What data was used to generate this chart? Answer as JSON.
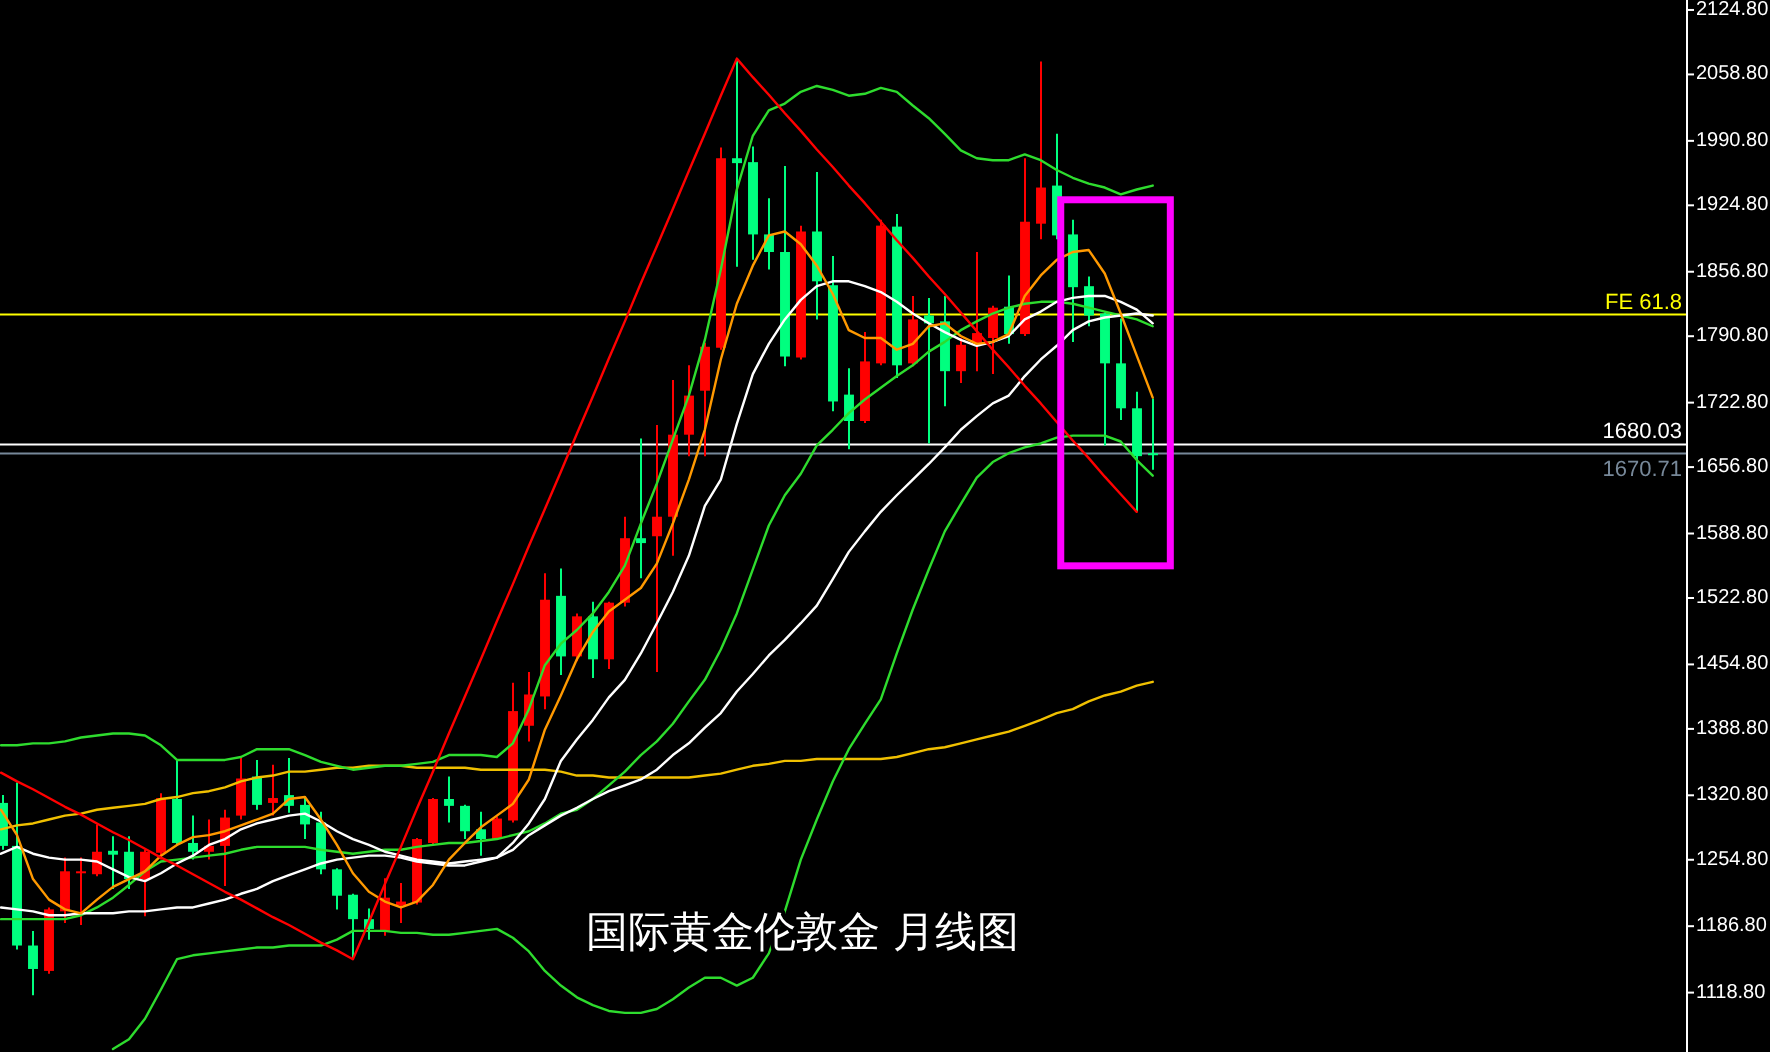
{
  "chart_data": {
    "type": "candlestick",
    "title": "国际黄金伦敦金 月线图",
    "categories": [
      null,
      null,
      null,
      null,
      null,
      null,
      null,
      null,
      null,
      null,
      null,
      null,
      null,
      null,
      null,
      null,
      null,
      null,
      null,
      null,
      null,
      null,
      null,
      null,
      null,
      null,
      null,
      null,
      null,
      null,
      null,
      null,
      null,
      null,
      null,
      null,
      null,
      null,
      null,
      null,
      null,
      null,
      null,
      null,
      null,
      null,
      null,
      null,
      null,
      null,
      null,
      null,
      null,
      null,
      null,
      null,
      null,
      null,
      null,
      null,
      null,
      null,
      null,
      null,
      null,
      null,
      null,
      null,
      null,
      null,
      null,
      null,
      null
    ],
    "ohlc": [
      [
        1313,
        1321,
        1265,
        1269
      ],
      [
        1269,
        1334,
        1163,
        1167
      ],
      [
        1167,
        1182,
        1116,
        1143
      ],
      [
        1141,
        1206,
        1138,
        1204
      ],
      [
        1202,
        1257,
        1190,
        1243
      ],
      [
        1241,
        1257,
        1188,
        1243
      ],
      [
        1240,
        1291,
        1238,
        1263
      ],
      [
        1264,
        1279,
        1225,
        1260
      ],
      [
        1263,
        1279,
        1225,
        1235
      ],
      [
        1235,
        1265,
        1197,
        1263
      ],
      [
        1262,
        1323,
        1255,
        1318
      ],
      [
        1317,
        1357,
        1269,
        1272
      ],
      [
        1272,
        1300,
        1255,
        1263
      ],
      [
        1263,
        1296,
        1255,
        1269
      ],
      [
        1269,
        1306,
        1228,
        1298
      ],
      [
        1300,
        1361,
        1296,
        1338
      ],
      [
        1340,
        1357,
        1306,
        1311
      ],
      [
        1313,
        1352,
        1300,
        1318
      ],
      [
        1321,
        1359,
        1303,
        1310
      ],
      [
        1311,
        1320,
        1276,
        1291
      ],
      [
        1293,
        1304,
        1240,
        1245
      ],
      [
        1245,
        1246,
        1204,
        1218
      ],
      [
        1219,
        1220,
        1153,
        1194
      ],
      [
        1194,
        1205,
        1173,
        1184
      ],
      [
        1182,
        1236,
        1177,
        1216
      ],
      [
        1208,
        1231,
        1190,
        1212
      ],
      [
        1211,
        1277,
        1209,
        1276
      ],
      [
        1272,
        1318,
        1270,
        1317
      ],
      [
        1317,
        1340,
        1293,
        1310
      ],
      [
        1310,
        1311,
        1276,
        1284
      ],
      [
        1286,
        1304,
        1259,
        1276
      ],
      [
        1276,
        1299,
        1275,
        1297
      ],
      [
        1295,
        1436,
        1293,
        1407
      ],
      [
        1392,
        1447,
        1376,
        1424
      ],
      [
        1422,
        1548,
        1409,
        1521
      ],
      [
        1525,
        1553,
        1444,
        1463
      ],
      [
        1463,
        1507,
        1458,
        1504
      ],
      [
        1504,
        1519,
        1441,
        1460
      ],
      [
        1460,
        1519,
        1450,
        1518
      ],
      [
        1518,
        1606,
        1514,
        1584
      ],
      [
        1584,
        1686,
        1543,
        1579
      ],
      [
        1586,
        1700,
        1447,
        1606
      ],
      [
        1606,
        1746,
        1566,
        1690
      ],
      [
        1690,
        1761,
        1668,
        1730
      ],
      [
        1735,
        1784,
        1668,
        1780
      ],
      [
        1779,
        1984,
        1777,
        1973
      ],
      [
        1973,
        2075,
        1862,
        1968
      ],
      [
        1969,
        1985,
        1869,
        1895
      ],
      [
        1895,
        1932,
        1859,
        1877
      ],
      [
        1877,
        1965,
        1760,
        1770
      ],
      [
        1769,
        1904,
        1767,
        1898
      ],
      [
        1898,
        1959,
        1808,
        1847
      ],
      [
        1843,
        1873,
        1714,
        1724
      ],
      [
        1731,
        1758,
        1675,
        1704
      ],
      [
        1704,
        1795,
        1702,
        1765
      ],
      [
        1763,
        1910,
        1761,
        1904
      ],
      [
        1903,
        1916,
        1748,
        1761
      ],
      [
        1763,
        1832,
        1760,
        1808
      ],
      [
        1812,
        1830,
        1681,
        1804
      ],
      [
        1806,
        1832,
        1719,
        1755
      ],
      [
        1755,
        1789,
        1743,
        1782
      ],
      [
        1784,
        1877,
        1755,
        1794
      ],
      [
        1789,
        1822,
        1752,
        1820
      ],
      [
        1821,
        1853,
        1783,
        1793
      ],
      [
        1793,
        1973,
        1791,
        1908
      ],
      [
        1906,
        2072,
        1890,
        1943
      ],
      [
        1945,
        1998,
        1890,
        1894
      ],
      [
        1895,
        1910,
        1785,
        1841
      ],
      [
        1842,
        1852,
        1801,
        1812
      ],
      [
        1814,
        1815,
        1679,
        1763
      ],
      [
        1763,
        1809,
        1705,
        1717
      ],
      [
        1717,
        1734,
        1611,
        1668
      ],
      [
        1671,
        1727,
        1654,
        1669
      ]
    ],
    "colors": [
      "#00ff7f",
      "#00ff7f",
      "#00ff7f",
      "#ff0000",
      "#ff0000",
      "#ff0000",
      "#ff0000",
      "#00ff7f",
      "#00ff7f",
      "#ff0000",
      "#ff0000",
      "#00ff7f",
      "#00ff7f",
      "#ff0000",
      "#ff0000",
      "#ff0000",
      "#00ff7f",
      "#ff0000",
      "#00ff7f",
      "#00ff7f",
      "#00ff7f",
      "#00ff7f",
      "#00ff7f",
      "#00ff7f",
      "#ff0000",
      "#ff0000",
      "#ff0000",
      "#ff0000",
      "#00ff7f",
      "#00ff7f",
      "#00ff7f",
      "#ff0000",
      "#ff0000",
      "#ff0000",
      "#ff0000",
      "#00ff7f",
      "#ff0000",
      "#00ff7f",
      "#ff0000",
      "#ff0000",
      "#00ff7f",
      "#ff0000",
      "#ff0000",
      "#ff0000",
      "#ff0000",
      "#ff0000",
      "#00ff7f",
      "#00ff7f",
      "#00ff7f",
      "#00ff7f",
      "#ff0000",
      "#00ff7f",
      "#00ff7f",
      "#00ff7f",
      "#ff0000",
      "#ff0000",
      "#00ff7f",
      "#ff0000",
      "#00ff7f",
      "#00ff7f",
      "#ff0000",
      "#ff0000",
      "#ff0000",
      "#00ff7f",
      "#ff0000",
      "#ff0000",
      "#00ff7f",
      "#00ff7f",
      "#00ff7f",
      "#00ff7f",
      "#00ff7f",
      "#00ff7f",
      "#00ff7f"
    ],
    "series": [
      {
        "type": "line",
        "color": "#f0c000",
        "values": [
          1286,
          1290,
          1292,
          1296,
          1300,
          1302,
          1306,
          1308,
          1310,
          1312,
          1317,
          1319,
          1323,
          1325,
          1329,
          1335,
          1339,
          1341,
          1345,
          1345,
          1347,
          1349,
          1349,
          1351,
          1351,
          1351,
          1349,
          1349,
          1349,
          1349,
          1347,
          1347,
          1347,
          1347,
          1347,
          1345,
          1341,
          1341,
          1339,
          1339,
          1339,
          1339,
          1339,
          1339,
          1341,
          1343,
          1347,
          1351,
          1353,
          1356,
          1356,
          1358,
          1358,
          1358,
          1358,
          1358,
          1360,
          1364,
          1368,
          1370,
          1374,
          1378,
          1382,
          1386,
          1392,
          1398,
          1405,
          1409,
          1417,
          1423,
          1427,
          1433,
          1437
        ]
      },
      {
        "type": "line",
        "color": "#2edc2e",
        "values": [
          1372,
          1372,
          1374,
          1374,
          1376,
          1380,
          1382,
          1384,
          1384,
          1382,
          1372,
          1357,
          1357,
          1357,
          1357,
          1360,
          1368,
          1368,
          1368,
          1362,
          1355,
          1351,
          1347,
          1349,
          1351,
          1351,
          1353,
          1355,
          1362,
          1362,
          1362,
          1360,
          1374,
          1409,
          1454,
          1476,
          1490,
          1507,
          1529,
          1556,
          1599,
          1640,
          1685,
          1730,
          1787,
          1859,
          1941,
          1996,
          2022,
          2029,
          2041,
          2047,
          2043,
          2037,
          2039,
          2045,
          2041,
          2027,
          2014,
          1998,
          1981,
          1973,
          1971,
          1971,
          1977,
          1971,
          1961,
          1953,
          1947,
          1943,
          1936,
          1941,
          1945
        ]
      },
      {
        "type": "line",
        "color": "#2edc2e",
        "values": [
          1194,
          1194,
          1194,
          1194,
          1194,
          1198,
          1206,
          1216,
          1229,
          1243,
          1253,
          1255,
          1257,
          1259,
          1261,
          1265,
          1268,
          1268,
          1268,
          1268,
          1265,
          1263,
          1261,
          1263,
          1265,
          1265,
          1268,
          1270,
          1272,
          1272,
          1274,
          1276,
          1280,
          1284,
          1292,
          1302,
          1306,
          1317,
          1331,
          1345,
          1362,
          1376,
          1394,
          1417,
          1439,
          1470,
          1507,
          1552,
          1597,
          1628,
          1650,
          1679,
          1695,
          1712,
          1726,
          1738,
          1750,
          1761,
          1775,
          1785,
          1797,
          1806,
          1814,
          1820,
          1824,
          1826,
          1826,
          1824,
          1820,
          1816,
          1812,
          1808,
          1801
        ]
      },
      {
        "type": "line",
        "color": "#2edc2e",
        "values": [
          null,
          null,
          null,
          null,
          null,
          null,
          null,
          1061,
          1071,
          1092,
          1122,
          1153,
          1157,
          1159,
          1161,
          1163,
          1165,
          1165,
          1167,
          1167,
          1167,
          1173,
          1182,
          1182,
          1182,
          1180,
          1180,
          1178,
          1178,
          1180,
          1182,
          1184,
          1175,
          1161,
          1141,
          1126,
          1114,
          1106,
          1100,
          1098,
          1098,
          1102,
          1112,
          1124,
          1134,
          1134,
          1126,
          1134,
          1159,
          1202,
          1255,
          1296,
          1335,
          1368,
          1394,
          1419,
          1466,
          1511,
          1552,
          1591,
          1619,
          1646,
          1662,
          1671,
          1677,
          1681,
          1687,
          1689,
          1689,
          1689,
          1683,
          1664,
          1648
        ]
      },
      {
        "type": "line",
        "color": "#ffffff",
        "values": [
          1206,
          1204,
          1202,
          1198,
          1198,
          1200,
          1200,
          1200,
          1202,
          1202,
          1204,
          1206,
          1206,
          1210,
          1214,
          1220,
          1225,
          1233,
          1239,
          1245,
          1251,
          1255,
          1257,
          1259,
          1259,
          1257,
          1253,
          1251,
          1249,
          1249,
          1253,
          1257,
          1265,
          1280,
          1290,
          1300,
          1308,
          1317,
          1325,
          1331,
          1337,
          1347,
          1362,
          1374,
          1390,
          1405,
          1427,
          1445,
          1464,
          1480,
          1497,
          1515,
          1542,
          1570,
          1591,
          1611,
          1628,
          1644,
          1660,
          1677,
          1695,
          1709,
          1722,
          1730,
          1750,
          1767,
          1781,
          1797,
          1806,
          1810,
          1812,
          1814,
          1812
        ]
      },
      {
        "type": "line",
        "color": "#ffffff",
        "values": [
          1261,
          1268,
          1261,
          1257,
          1255,
          1255,
          1253,
          1245,
          1237,
          1233,
          1241,
          1251,
          1259,
          1270,
          1276,
          1286,
          1292,
          1296,
          1300,
          1302,
          1294,
          1284,
          1276,
          1270,
          1263,
          1259,
          1255,
          1253,
          1251,
          1253,
          1255,
          1257,
          1272,
          1292,
          1317,
          1356,
          1378,
          1398,
          1421,
          1439,
          1466,
          1497,
          1529,
          1566,
          1617,
          1644,
          1701,
          1752,
          1783,
          1808,
          1828,
          1842,
          1847,
          1847,
          1842,
          1836,
          1826,
          1814,
          1804,
          1795,
          1787,
          1781,
          1785,
          1791,
          1808,
          1816,
          1826,
          1830,
          1832,
          1832,
          1826,
          1818,
          1804
        ]
      },
      {
        "type": "line",
        "color": "#ff9900",
        "values": [
          1306,
          1280,
          1235,
          1214,
          1204,
          1200,
          1214,
          1227,
          1235,
          1243,
          1259,
          1270,
          1278,
          1280,
          1284,
          1290,
          1296,
          1302,
          1317,
          1319,
          1296,
          1270,
          1241,
          1222,
          1212,
          1206,
          1212,
          1229,
          1255,
          1272,
          1288,
          1300,
          1312,
          1337,
          1388,
          1423,
          1460,
          1488,
          1509,
          1521,
          1533,
          1558,
          1599,
          1644,
          1695,
          1767,
          1824,
          1863,
          1894,
          1898,
          1885,
          1863,
          1834,
          1797,
          1789,
          1789,
          1777,
          1783,
          1801,
          1804,
          1791,
          1783,
          1785,
          1793,
          1832,
          1853,
          1869,
          1877,
          1879,
          1855,
          1814,
          1771,
          1728
        ]
      },
      {
        "type": "line",
        "color": "#ff0000",
        "values": [
          1344,
          1335,
          1327,
          1318,
          1309,
          1301,
          1292,
          1283,
          1275,
          1266,
          1257,
          1249,
          1240,
          1231,
          1222,
          1214,
          1205,
          1196,
          1188,
          1179,
          1170,
          1162,
          1153,
          1191,
          1230,
          1268,
          1307,
          1345,
          1384,
          1422,
          1460,
          1499,
          1537,
          1576,
          1614,
          1652,
          1691,
          1729,
          1768,
          1806,
          1845,
          1883,
          1921,
          1960,
          1998,
          2037,
          2075,
          2056,
          2038,
          2019,
          2001,
          1982,
          1964,
          1945,
          1927,
          1908,
          1889,
          1871,
          1852,
          1834,
          1815,
          1796,
          1777,
          1759,
          1740,
          1722,
          1703,
          1684,
          1666,
          1647,
          1629,
          1611,
          null
        ]
      }
    ],
    "ylim": [
      1058,
      2135
    ],
    "yticks": [
      {
        "value": 1118.8,
        "label": "1118.80"
      },
      {
        "value": 1186.8,
        "label": "1186.80"
      },
      {
        "value": 1254.8,
        "label": "1254.80"
      },
      {
        "value": 1320.8,
        "label": "1320.80"
      },
      {
        "value": 1388.8,
        "label": "1388.80"
      },
      {
        "value": 1454.8,
        "label": "1454.80"
      },
      {
        "value": 1522.8,
        "label": "1522.80"
      },
      {
        "value": 1588.8,
        "label": "1588.80"
      },
      {
        "value": 1656.8,
        "label": "1656.80"
      },
      {
        "value": 1722.8,
        "label": "1722.80"
      },
      {
        "value": 1790.8,
        "label": "1790.80"
      },
      {
        "value": 1856.8,
        "label": "1856.80"
      },
      {
        "value": 1924.8,
        "label": "1924.80"
      },
      {
        "value": 1990.8,
        "label": "1990.80"
      },
      {
        "value": 2058.8,
        "label": "2058.80"
      },
      {
        "value": 2124.8,
        "label": "2124.80"
      }
    ],
    "ref_lines": [
      {
        "axis": "y",
        "value": 1813,
        "label": "FE 61.8",
        "color": "#ffff00"
      },
      {
        "axis": "y",
        "value": 1680.03,
        "label": "1680.03",
        "color": "#ffffff"
      },
      {
        "axis": "y",
        "value": 1670.71,
        "label": "1670.71",
        "color": "#778899"
      }
    ],
    "tick_labels": "y"
  }
}
